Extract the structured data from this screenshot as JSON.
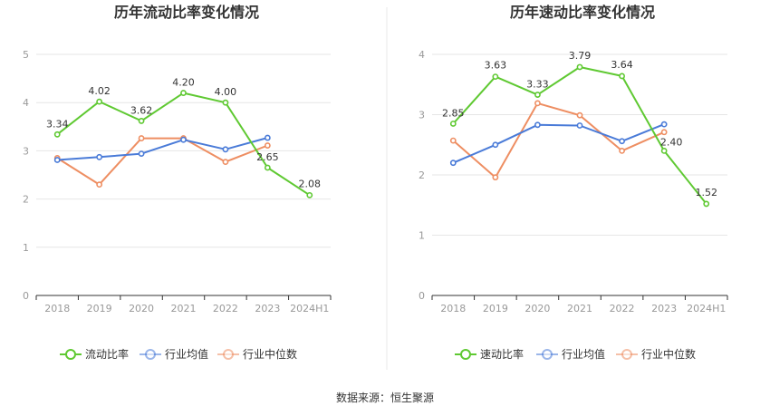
{
  "colors": {
    "primary": "#5fc932",
    "average": "#4a7bd8",
    "median": "#ee8e62",
    "grid": "#e6e6e6",
    "axis": "#333333",
    "divider": "#e9e9e9"
  },
  "source_text": "数据来源：恒生聚源",
  "chart_data": [
    {
      "type": "line",
      "title": "历年流动比率变化情况",
      "categories": [
        "2018",
        "2019",
        "2020",
        "2021",
        "2022",
        "2023",
        "2024H1"
      ],
      "ylim": [
        0,
        5
      ],
      "yticks": [
        "0",
        "1",
        "2",
        "3",
        "4",
        "5"
      ],
      "grid": true,
      "legend_position": "bottom",
      "series": [
        {
          "name": "流动比率",
          "key": "primary",
          "values": [
            3.34,
            4.02,
            3.62,
            4.2,
            4.0,
            2.65,
            2.08
          ],
          "labels": [
            "3.34",
            "4.02",
            "3.62",
            "4.20",
            "4.00",
            "2.65",
            "2.08"
          ]
        },
        {
          "name": "行业均值",
          "key": "average",
          "values": [
            2.81,
            2.87,
            2.94,
            3.23,
            3.03,
            3.27,
            null
          ]
        },
        {
          "name": "行业中位数",
          "key": "median",
          "values": [
            2.85,
            2.3,
            3.26,
            3.26,
            2.77,
            3.11,
            null
          ]
        }
      ]
    },
    {
      "type": "line",
      "title": "历年速动比率变化情况",
      "categories": [
        "2018",
        "2019",
        "2020",
        "2021",
        "2022",
        "2023",
        "2024H1"
      ],
      "ylim": [
        0,
        4
      ],
      "yticks": [
        "0",
        "1",
        "2",
        "3",
        "4"
      ],
      "grid": true,
      "legend_position": "bottom",
      "series": [
        {
          "name": "速动比率",
          "key": "primary",
          "values": [
            2.85,
            3.63,
            3.33,
            3.79,
            3.64,
            2.4,
            1.52
          ],
          "labels": [
            "2.85",
            "3.63",
            "3.33",
            "3.79",
            "3.64",
            "2.40",
            "1.52"
          ]
        },
        {
          "name": "行业均值",
          "key": "average",
          "values": [
            2.2,
            2.5,
            2.83,
            2.82,
            2.56,
            2.84,
            null
          ]
        },
        {
          "name": "行业中位数",
          "key": "median",
          "values": [
            2.57,
            1.96,
            3.19,
            2.99,
            2.4,
            2.71,
            null
          ]
        }
      ]
    }
  ]
}
